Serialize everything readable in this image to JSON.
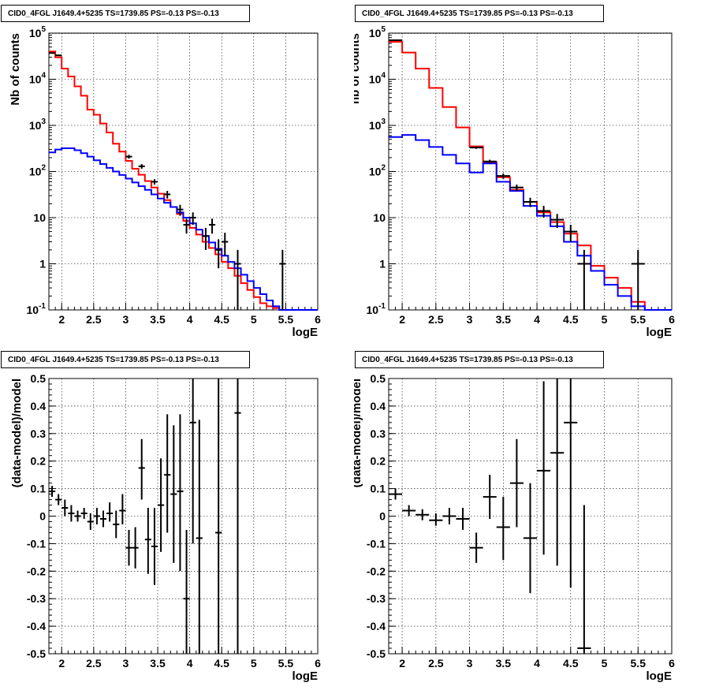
{
  "chart_data": [
    {
      "type": "line",
      "title": "CID0_4FGL J1649.4+5235 TS=1739.85 PS=-0.13 PS=-0.13",
      "xlabel": "logE",
      "ylabel": "Nb of counts",
      "xlim": [
        1.8,
        6.0
      ],
      "ylim": [
        0.1,
        100000
      ],
      "yscale": "log",
      "grid": true,
      "xticks": [
        "2",
        "2.5",
        "3",
        "3.5",
        "4",
        "4.5",
        "5",
        "5.5",
        "6"
      ],
      "yticks": [
        "10^-1",
        "1",
        "10",
        "10^2",
        "10^3",
        "10^4",
        "10^5"
      ],
      "bin_edges": [
        1.8,
        1.9,
        2.0,
        2.1,
        2.2,
        2.3,
        2.4,
        2.5,
        2.6,
        2.7,
        2.8,
        2.9,
        3.0,
        3.1,
        3.2,
        3.3,
        3.4,
        3.5,
        3.6,
        3.7,
        3.8,
        3.9,
        4.0,
        4.1,
        4.2,
        4.3,
        4.4,
        4.5,
        4.6,
        4.7,
        4.8,
        4.9,
        5.0,
        5.1,
        5.2,
        5.3,
        5.4,
        5.5,
        5.6,
        5.7,
        5.8,
        5.9,
        6.0
      ],
      "series": [
        {
          "color": "#ff0000",
          "values": [
            40000,
            30000,
            17000,
            11500,
            7000,
            4400,
            2200,
            1700,
            1100,
            700,
            400,
            270,
            170,
            115,
            85,
            62,
            45,
            33,
            24,
            17,
            12,
            8.5,
            6,
            4.3,
            3,
            2.2,
            1.6,
            1.1,
            0.8,
            0.55,
            0.38,
            0.27,
            0.19,
            0.14,
            0.12,
            0.11,
            0.1,
            0.1,
            0.1,
            0.1,
            0.1,
            0.1
          ]
        },
        {
          "color": "#0000ff",
          "values": [
            260,
            300,
            320,
            320,
            290,
            250,
            210,
            175,
            145,
            120,
            100,
            84,
            70,
            58,
            48,
            40,
            32,
            26,
            21,
            17,
            13,
            10,
            7.5,
            5.5,
            4,
            2.9,
            2.1,
            1.5,
            1.1,
            0.8,
            0.58,
            0.42,
            0.3,
            0.22,
            0.16,
            0.12,
            0.1,
            0.1,
            0.1,
            0.1,
            0.1,
            0.1
          ]
        }
      ],
      "points": [
        {
          "x": 1.85,
          "y": 37000,
          "ylo": 36000,
          "yhi": 38000
        },
        {
          "x": 1.95,
          "y": 33000,
          "ylo": 32000,
          "yhi": 34000
        },
        {
          "x": 3.05,
          "y": 210,
          "ylo": 190,
          "yhi": 230
        },
        {
          "x": 3.25,
          "y": 130,
          "ylo": 115,
          "yhi": 145
        },
        {
          "x": 3.45,
          "y": 60,
          "ylo": 52,
          "yhi": 68
        },
        {
          "x": 3.65,
          "y": 32,
          "ylo": 26,
          "yhi": 38
        },
        {
          "x": 3.85,
          "y": 15,
          "ylo": 11,
          "yhi": 19
        },
        {
          "x": 3.95,
          "y": 7,
          "ylo": 4.5,
          "yhi": 9.5
        },
        {
          "x": 4.05,
          "y": 10,
          "ylo": 7,
          "yhi": 13
        },
        {
          "x": 4.25,
          "y": 4,
          "ylo": 2,
          "yhi": 6
        },
        {
          "x": 4.35,
          "y": 7,
          "ylo": 4.5,
          "yhi": 9.5
        },
        {
          "x": 4.45,
          "y": 2,
          "ylo": 0.8,
          "yhi": 3.4
        },
        {
          "x": 4.55,
          "y": 3,
          "ylo": 1.5,
          "yhi": 4.7
        },
        {
          "x": 4.75,
          "y": 1,
          "ylo": 0.1,
          "yhi": 2
        },
        {
          "x": 5.45,
          "y": 1,
          "ylo": 0.1,
          "yhi": 2
        }
      ]
    },
    {
      "type": "line",
      "title": "CID0_4FGL J1649.4+5235 TS=1739.85 PS=-0.13 PS=-0.13",
      "xlabel": "logE",
      "ylabel": "nb of counts",
      "xlim": [
        1.8,
        6.0
      ],
      "ylim": [
        0.1,
        100000
      ],
      "yscale": "log",
      "grid": true,
      "xticks": [
        "2",
        "2.5",
        "3",
        "3.5",
        "4",
        "4.5",
        "5",
        "5.5",
        "6"
      ],
      "yticks": [
        "10^-1",
        "1",
        "10",
        "10^2",
        "10^3",
        "10^4",
        "10^5"
      ],
      "bin_edges": [
        1.8,
        2.0,
        2.2,
        2.4,
        2.6,
        2.8,
        3.0,
        3.2,
        3.4,
        3.6,
        3.8,
        4.0,
        4.2,
        4.4,
        4.6,
        4.8,
        5.0,
        5.2,
        5.4,
        5.6,
        5.8,
        6.0
      ],
      "series": [
        {
          "color": "#ff0000",
          "values": [
            65000,
            38000,
            17000,
            6500,
            2500,
            900,
            350,
            160,
            75,
            40,
            22,
            13,
            8,
            4.5,
            2.5,
            0.9,
            0.5,
            0.3,
            0.15,
            0.1,
            0.1
          ]
        },
        {
          "color": "#0000ff",
          "values": [
            560,
            620,
            480,
            340,
            230,
            150,
            95,
            150,
            60,
            38,
            18,
            11,
            6.5,
            3,
            1.5,
            0.7,
            0.35,
            0.2,
            0.12,
            0.1,
            0.1
          ]
        }
      ],
      "points": [
        {
          "x": 1.9,
          "y": 70000,
          "ylo": 68000,
          "yhi": 72000
        },
        {
          "x": 3.1,
          "y": 330,
          "ylo": 310,
          "yhi": 350
        },
        {
          "x": 3.3,
          "y": 165,
          "ylo": 150,
          "yhi": 180
        },
        {
          "x": 3.5,
          "y": 80,
          "ylo": 70,
          "yhi": 90
        },
        {
          "x": 3.7,
          "y": 45,
          "ylo": 38,
          "yhi": 52
        },
        {
          "x": 3.9,
          "y": 22,
          "ylo": 17,
          "yhi": 27
        },
        {
          "x": 4.1,
          "y": 14,
          "ylo": 10,
          "yhi": 18
        },
        {
          "x": 4.3,
          "y": 9,
          "ylo": 6,
          "yhi": 12
        },
        {
          "x": 4.5,
          "y": 5,
          "ylo": 3,
          "yhi": 7
        },
        {
          "x": 4.7,
          "y": 1,
          "ylo": 0.1,
          "yhi": 2
        },
        {
          "x": 5.5,
          "y": 1,
          "ylo": 0.1,
          "yhi": 2
        }
      ]
    },
    {
      "type": "scatter",
      "title": "CID0_4FGL J1649.4+5235 TS=1739.85 PS=-0.13 PS=-0.13",
      "xlabel": "logE",
      "ylabel": "(data-model)/model",
      "xlim": [
        1.8,
        6.0
      ],
      "ylim": [
        -0.5,
        0.5
      ],
      "grid": true,
      "xticks": [
        "2",
        "2.5",
        "3",
        "3.5",
        "4",
        "4.5",
        "5",
        "5.5",
        "6"
      ],
      "yticks": [
        "-0.5",
        "-0.4",
        "-0.3",
        "-0.2",
        "-0.1",
        "0",
        "0.1",
        "0.2",
        "0.3",
        "0.4",
        "0.5"
      ],
      "xerr": 0.05,
      "points": [
        {
          "x": 1.85,
          "y": 0.09,
          "ylo": 0.07,
          "yhi": 0.11
        },
        {
          "x": 1.95,
          "y": 0.06,
          "ylo": 0.04,
          "yhi": 0.08
        },
        {
          "x": 2.05,
          "y": 0.03,
          "ylo": 0.0,
          "yhi": 0.06
        },
        {
          "x": 2.15,
          "y": 0.01,
          "ylo": -0.02,
          "yhi": 0.04
        },
        {
          "x": 2.25,
          "y": 0.0,
          "ylo": -0.02,
          "yhi": 0.02
        },
        {
          "x": 2.35,
          "y": 0.01,
          "ylo": -0.01,
          "yhi": 0.03
        },
        {
          "x": 2.45,
          "y": -0.02,
          "ylo": -0.05,
          "yhi": 0.01
        },
        {
          "x": 2.55,
          "y": 0.0,
          "ylo": -0.03,
          "yhi": 0.03
        },
        {
          "x": 2.65,
          "y": -0.01,
          "ylo": -0.04,
          "yhi": 0.02
        },
        {
          "x": 2.75,
          "y": 0.01,
          "ylo": -0.02,
          "yhi": 0.05
        },
        {
          "x": 2.85,
          "y": -0.03,
          "ylo": -0.08,
          "yhi": 0.02
        },
        {
          "x": 2.95,
          "y": 0.02,
          "ylo": -0.03,
          "yhi": 0.08
        },
        {
          "x": 3.05,
          "y": -0.115,
          "ylo": -0.18,
          "yhi": -0.05
        },
        {
          "x": 3.15,
          "y": -0.115,
          "ylo": -0.19,
          "yhi": -0.04
        },
        {
          "x": 3.25,
          "y": 0.175,
          "ylo": 0.06,
          "yhi": 0.28
        },
        {
          "x": 3.35,
          "y": -0.085,
          "ylo": -0.21,
          "yhi": 0.03
        },
        {
          "x": 3.45,
          "y": -0.11,
          "ylo": -0.25,
          "yhi": 0.03
        },
        {
          "x": 3.55,
          "y": 0.04,
          "ylo": -0.13,
          "yhi": 0.21
        },
        {
          "x": 3.65,
          "y": 0.15,
          "ylo": -0.06,
          "yhi": 0.37
        },
        {
          "x": 3.75,
          "y": 0.08,
          "ylo": -0.17,
          "yhi": 0.33
        },
        {
          "x": 3.85,
          "y": 0.09,
          "ylo": -0.2,
          "yhi": 0.37
        },
        {
          "x": 3.95,
          "y": -0.3,
          "ylo": -0.5,
          "yhi": -0.05
        },
        {
          "x": 4.05,
          "y": 0.34,
          "ylo": -0.1,
          "yhi": 0.5
        },
        {
          "x": 4.15,
          "y": -0.08,
          "ylo": -0.5,
          "yhi": 0.35
        },
        {
          "x": 4.45,
          "y": -0.06,
          "ylo": -0.5,
          "yhi": 0.5
        },
        {
          "x": 4.75,
          "y": 0.375,
          "ylo": -0.5,
          "yhi": 0.5
        }
      ]
    },
    {
      "type": "scatter",
      "title": "CID0_4FGL J1649.4+5235 TS=1739.85 PS=-0.13 PS=-0.13",
      "xlabel": "logE",
      "ylabel": "(data-model)/model",
      "xlim": [
        1.8,
        6.0
      ],
      "ylim": [
        -0.5,
        0.5
      ],
      "grid": true,
      "xticks": [
        "2",
        "2.5",
        "3",
        "3.5",
        "4",
        "4.5",
        "5",
        "5.5",
        "6"
      ],
      "yticks": [
        "-0.5",
        "-0.4",
        "-0.3",
        "-0.2",
        "-0.1",
        "0",
        "0.1",
        "0.2",
        "0.3",
        "0.4",
        "0.5"
      ],
      "xerr": 0.1,
      "points": [
        {
          "x": 1.9,
          "y": 0.08,
          "ylo": 0.06,
          "yhi": 0.1
        },
        {
          "x": 2.1,
          "y": 0.02,
          "ylo": 0.0,
          "yhi": 0.04
        },
        {
          "x": 2.3,
          "y": 0.005,
          "ylo": -0.015,
          "yhi": 0.025
        },
        {
          "x": 2.5,
          "y": -0.015,
          "ylo": -0.035,
          "yhi": 0.01
        },
        {
          "x": 2.7,
          "y": 0.0,
          "ylo": -0.03,
          "yhi": 0.03
        },
        {
          "x": 2.9,
          "y": -0.01,
          "ylo": -0.05,
          "yhi": 0.03
        },
        {
          "x": 3.1,
          "y": -0.115,
          "ylo": -0.17,
          "yhi": -0.06
        },
        {
          "x": 3.3,
          "y": 0.07,
          "ylo": -0.01,
          "yhi": 0.15
        },
        {
          "x": 3.5,
          "y": -0.04,
          "ylo": -0.16,
          "yhi": 0.07
        },
        {
          "x": 3.7,
          "y": 0.12,
          "ylo": -0.04,
          "yhi": 0.28
        },
        {
          "x": 3.9,
          "y": -0.08,
          "ylo": -0.28,
          "yhi": 0.12
        },
        {
          "x": 4.1,
          "y": 0.165,
          "ylo": -0.14,
          "yhi": 0.49
        },
        {
          "x": 4.3,
          "y": 0.23,
          "ylo": -0.18,
          "yhi": 0.5
        },
        {
          "x": 4.5,
          "y": 0.34,
          "ylo": -0.26,
          "yhi": 0.5
        },
        {
          "x": 4.7,
          "y": -0.48,
          "ylo": -0.5,
          "yhi": 0.04
        }
      ]
    }
  ]
}
